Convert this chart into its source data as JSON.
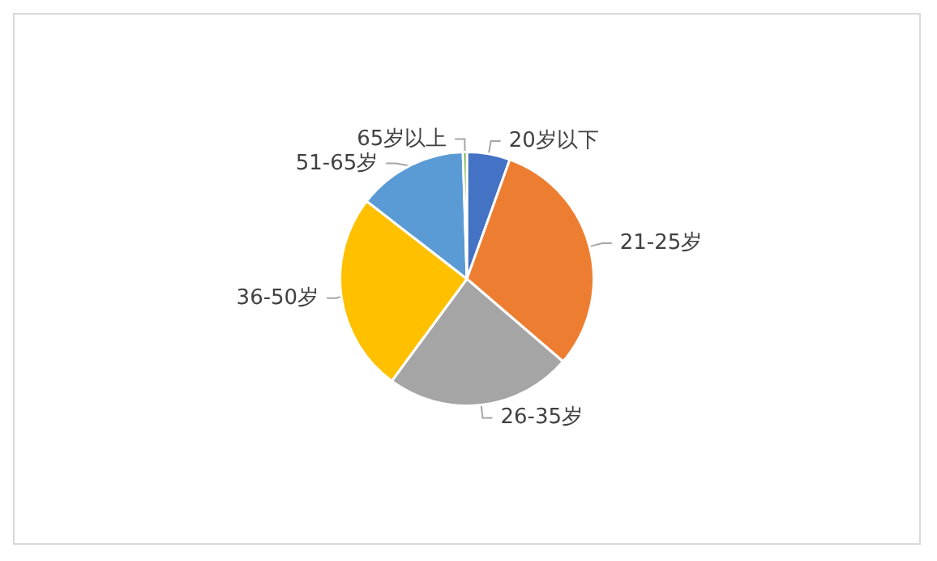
{
  "chart_data": {
    "type": "pie",
    "categories": [
      "20岁以下",
      "21-25岁",
      "26-35岁",
      "36-50岁",
      "51-65岁",
      "65岁以上"
    ],
    "values": [
      5.5,
      30.8,
      23.8,
      25.4,
      14.0,
      0.5
    ],
    "colors": [
      "#4472c4",
      "#ed7d31",
      "#a5a5a5",
      "#ffc000",
      "#5b9bd5",
      "#70ad47"
    ],
    "legend": false
  }
}
